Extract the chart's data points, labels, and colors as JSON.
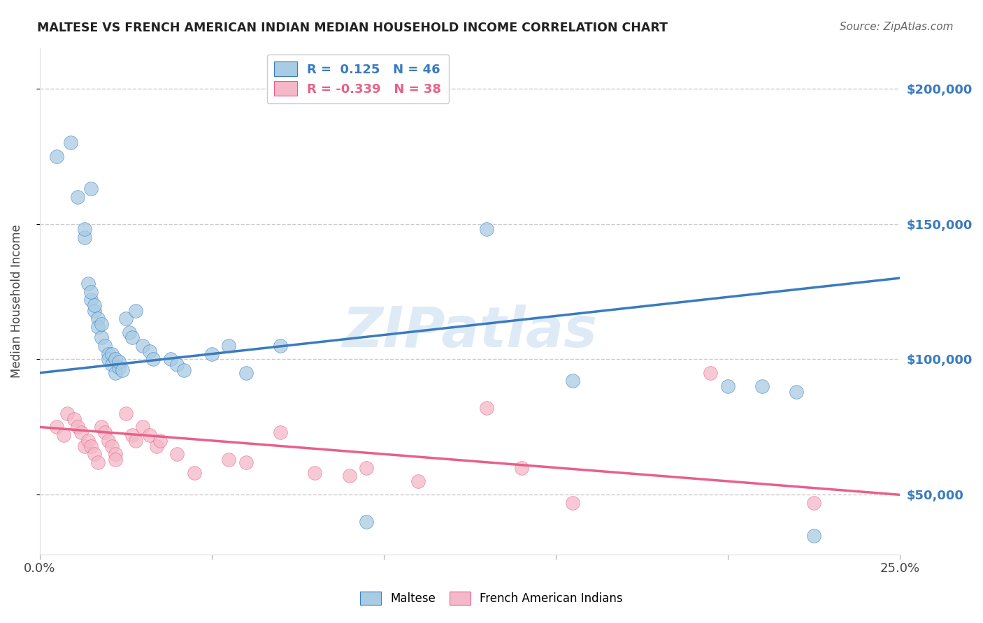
{
  "title": "MALTESE VS FRENCH AMERICAN INDIAN MEDIAN HOUSEHOLD INCOME CORRELATION CHART",
  "source": "Source: ZipAtlas.com",
  "ylabel": "Median Household Income",
  "xlim": [
    0.0,
    0.25
  ],
  "ylim": [
    28000,
    215000
  ],
  "yticks": [
    50000,
    100000,
    150000,
    200000
  ],
  "ytick_labels": [
    "$50,000",
    "$100,000",
    "$150,000",
    "$200,000"
  ],
  "xticks": [
    0.0,
    0.05,
    0.1,
    0.15,
    0.2,
    0.25
  ],
  "blue_R": 0.125,
  "blue_N": 46,
  "pink_R": -0.339,
  "pink_N": 38,
  "blue_color": "#a8cce4",
  "pink_color": "#f4b8c8",
  "blue_line_color": "#3a7bbf",
  "pink_line_color": "#e8608a",
  "background_color": "#ffffff",
  "grid_color": "#cccccc",
  "watermark": "ZIPatlas",
  "blue_x": [
    0.005,
    0.009,
    0.011,
    0.015,
    0.013,
    0.013,
    0.014,
    0.015,
    0.015,
    0.016,
    0.016,
    0.017,
    0.017,
    0.018,
    0.018,
    0.019,
    0.02,
    0.02,
    0.021,
    0.021,
    0.022,
    0.022,
    0.023,
    0.023,
    0.024,
    0.025,
    0.026,
    0.027,
    0.028,
    0.03,
    0.032,
    0.033,
    0.038,
    0.04,
    0.042,
    0.05,
    0.055,
    0.06,
    0.07,
    0.095,
    0.13,
    0.155,
    0.2,
    0.21,
    0.22,
    0.225
  ],
  "blue_y": [
    175000,
    180000,
    160000,
    163000,
    145000,
    148000,
    128000,
    122000,
    125000,
    118000,
    120000,
    115000,
    112000,
    108000,
    113000,
    105000,
    102000,
    100000,
    98000,
    102000,
    95000,
    100000,
    97000,
    99000,
    96000,
    115000,
    110000,
    108000,
    118000,
    105000,
    103000,
    100000,
    100000,
    98000,
    96000,
    102000,
    105000,
    95000,
    105000,
    40000,
    148000,
    92000,
    90000,
    90000,
    88000,
    35000
  ],
  "pink_x": [
    0.005,
    0.007,
    0.008,
    0.01,
    0.011,
    0.012,
    0.013,
    0.014,
    0.015,
    0.016,
    0.017,
    0.018,
    0.019,
    0.02,
    0.021,
    0.022,
    0.022,
    0.025,
    0.027,
    0.028,
    0.03,
    0.032,
    0.034,
    0.035,
    0.04,
    0.045,
    0.055,
    0.06,
    0.07,
    0.08,
    0.09,
    0.095,
    0.11,
    0.13,
    0.14,
    0.155,
    0.195,
    0.225
  ],
  "pink_y": [
    75000,
    72000,
    80000,
    78000,
    75000,
    73000,
    68000,
    70000,
    68000,
    65000,
    62000,
    75000,
    73000,
    70000,
    68000,
    65000,
    63000,
    80000,
    72000,
    70000,
    75000,
    72000,
    68000,
    70000,
    65000,
    58000,
    63000,
    62000,
    73000,
    58000,
    57000,
    60000,
    55000,
    82000,
    60000,
    47000,
    95000,
    47000
  ]
}
